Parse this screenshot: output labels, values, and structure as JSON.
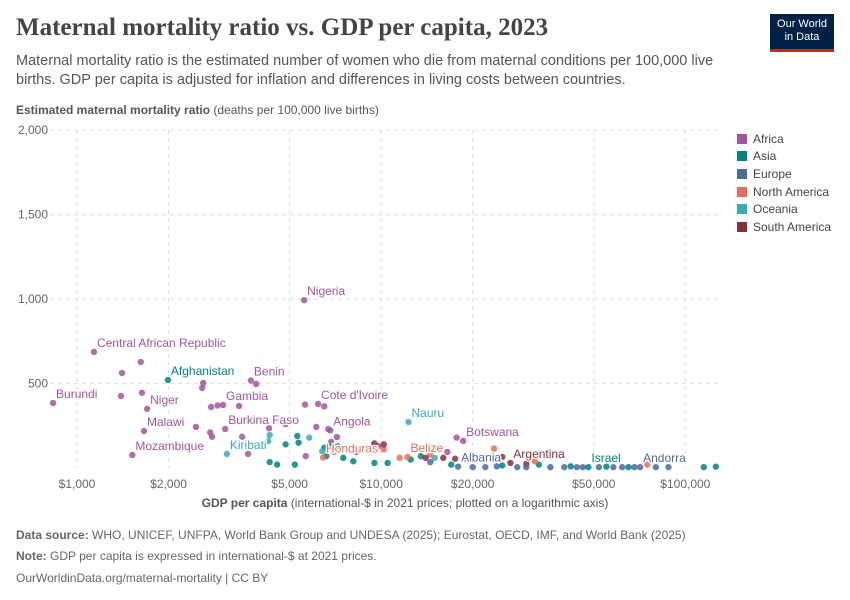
{
  "header": {
    "title": "Maternal mortality ratio vs. GDP per capita, 2023",
    "subtitle": "Maternal mortality ratio is the estimated number of women who die from maternal conditions per 100,000 live births. GDP per capita is adjusted for inflation and differences in living costs between countries.",
    "logo": "Our World in Data"
  },
  "footer": {
    "source_label": "Data source:",
    "source": "WHO, UNICEF, UNFPA, World Bank Group and UNDESA (2025); Eurostat, OECD, IMF, and World Bank (2025)",
    "note_label": "Note:",
    "note": "GDP per capita is expressed in international-$ at 2021 prices.",
    "link": "OurWorldinData.org/maternal-mortality | CC BY"
  },
  "chart_data": {
    "type": "scatter",
    "title": "Maternal mortality ratio vs. GDP per capita, 2023",
    "ylabel_bold": "Estimated maternal mortality ratio",
    "ylabel_rest": "(deaths per 100,000 live births)",
    "xlabel_bold": "GDP per capita",
    "xlabel_rest": "(international-$ in 2021 prices; plotted on a logarithmic axis)",
    "x_scale": "log",
    "xlim": [
      815,
      130000
    ],
    "ylim": [
      0,
      2000
    ],
    "grid": true,
    "legend_placement": "right",
    "xticks": [
      {
        "v": 1000,
        "label": "$1,000"
      },
      {
        "v": 2000,
        "label": "$2,000"
      },
      {
        "v": 5000,
        "label": "$5,000"
      },
      {
        "v": 10000,
        "label": "$10,000"
      },
      {
        "v": 20000,
        "label": "$20,000"
      },
      {
        "v": 50000,
        "label": "$50,000"
      },
      {
        "v": 100000,
        "label": "$100,000"
      }
    ],
    "yticks": [
      {
        "v": 500,
        "label": "500"
      },
      {
        "v": 1000,
        "label": "1,000"
      },
      {
        "v": 1500,
        "label": "1,500"
      },
      {
        "v": 2000,
        "label": "2,000"
      }
    ],
    "regions": [
      {
        "name": "Africa",
        "color": "#a2559c"
      },
      {
        "name": "Asia",
        "color": "#00847e"
      },
      {
        "name": "Europe",
        "color": "#4c6a9c"
      },
      {
        "name": "North America",
        "color": "#e56e5a"
      },
      {
        "name": "Oceania",
        "color": "#38aaba"
      },
      {
        "name": "South America",
        "color": "#883039"
      }
    ],
    "points": [
      {
        "name": "Burundi",
        "gdp": 834,
        "mmr": 385,
        "region": "Africa",
        "label": true
      },
      {
        "name": "Central African Republic",
        "gdp": 1137,
        "mmr": 687,
        "region": "Africa",
        "label": true
      },
      {
        "name": "Nigeria",
        "gdp": 5580,
        "mmr": 993,
        "region": "Africa",
        "label": true
      },
      {
        "name": "Afghanistan",
        "gdp": 1990,
        "mmr": 521,
        "region": "Asia",
        "label": true
      },
      {
        "name": "Benin",
        "gdp": 3730,
        "mmr": 518,
        "region": "Africa",
        "label": true
      },
      {
        "name": "Niger",
        "gdp": 1700,
        "mmr": 350,
        "region": "Africa",
        "label": true
      },
      {
        "name": "Gambia",
        "gdp": 3020,
        "mmr": 373,
        "region": "Africa",
        "label": true
      },
      {
        "name": "Malawi",
        "gdp": 1660,
        "mmr": 219,
        "region": "Africa",
        "label": true
      },
      {
        "name": "Burkina Faso",
        "gdp": 3070,
        "mmr": 231,
        "region": "Africa",
        "label": true
      },
      {
        "name": "Mozambique",
        "gdp": 1520,
        "mmr": 77,
        "region": "Africa",
        "label": true
      },
      {
        "name": "Kiribati",
        "gdp": 3110,
        "mmr": 83,
        "region": "Oceania",
        "label": true
      },
      {
        "name": "Cote d'Ivoire",
        "gdp": 6200,
        "mmr": 379,
        "region": "Africa",
        "label": true
      },
      {
        "name": "Angola",
        "gdp": 6800,
        "mmr": 222,
        "region": "Africa",
        "label": true
      },
      {
        "name": "Nauru",
        "gdp": 12300,
        "mmr": 272,
        "region": "Oceania",
        "label": true
      },
      {
        "name": "Honduras",
        "gdp": 6440,
        "mmr": 62,
        "region": "North America",
        "label": true
      },
      {
        "name": "Belize",
        "gdp": 12200,
        "mmr": 65,
        "region": "North America",
        "label": true
      },
      {
        "name": "Botswana",
        "gdp": 18600,
        "mmr": 160,
        "region": "Africa",
        "label": true
      },
      {
        "name": "Albania",
        "gdp": 17900,
        "mmr": 8,
        "region": "Europe",
        "label": true
      },
      {
        "name": "Argentina",
        "gdp": 26600,
        "mmr": 30,
        "region": "South America",
        "label": true
      },
      {
        "name": "Israel",
        "gdp": 48000,
        "mmr": 5,
        "region": "Asia",
        "label": true
      },
      {
        "name": "Andorra",
        "gdp": 71000,
        "mmr": 5,
        "region": "Europe",
        "label": true
      },
      {
        "gdp": 1406,
        "mmr": 562,
        "region": "Africa"
      },
      {
        "gdp": 1620,
        "mmr": 627,
        "region": "Africa"
      },
      {
        "gdp": 1395,
        "mmr": 426,
        "region": "Africa"
      },
      {
        "gdp": 1635,
        "mmr": 445,
        "region": "Africa"
      },
      {
        "gdp": 2600,
        "mmr": 503,
        "region": "Africa"
      },
      {
        "gdp": 2580,
        "mmr": 474,
        "region": "Africa"
      },
      {
        "gdp": 3880,
        "mmr": 497,
        "region": "Africa"
      },
      {
        "gdp": 2760,
        "mmr": 361,
        "region": "Africa"
      },
      {
        "gdp": 2900,
        "mmr": 370,
        "region": "Africa"
      },
      {
        "gdp": 3410,
        "mmr": 367,
        "region": "Africa"
      },
      {
        "gdp": 2460,
        "mmr": 243,
        "region": "Africa"
      },
      {
        "gdp": 2740,
        "mmr": 210,
        "region": "Africa"
      },
      {
        "gdp": 2780,
        "mmr": 185,
        "region": "Africa"
      },
      {
        "gdp": 3490,
        "mmr": 185,
        "region": "Africa"
      },
      {
        "gdp": 3650,
        "mmr": 83,
        "region": "Africa"
      },
      {
        "gdp": 4280,
        "mmr": 235,
        "region": "Africa"
      },
      {
        "gdp": 4850,
        "mmr": 260,
        "region": "Africa"
      },
      {
        "gdp": 5620,
        "mmr": 375,
        "region": "Africa"
      },
      {
        "gdp": 6500,
        "mmr": 365,
        "region": "Africa"
      },
      {
        "gdp": 6120,
        "mmr": 243,
        "region": "Africa"
      },
      {
        "gdp": 6700,
        "mmr": 230,
        "region": "Africa"
      },
      {
        "gdp": 7150,
        "mmr": 183,
        "region": "Africa"
      },
      {
        "gdp": 5650,
        "mmr": 70,
        "region": "Africa"
      },
      {
        "gdp": 8300,
        "mmr": 95,
        "region": "Africa"
      },
      {
        "gdp": 16500,
        "mmr": 95,
        "region": "Africa"
      },
      {
        "gdp": 17700,
        "mmr": 180,
        "region": "Africa"
      },
      {
        "gdp": 6850,
        "mmr": 155,
        "region": "Africa"
      },
      {
        "gdp": 9800,
        "mmr": 130,
        "region": "Africa"
      },
      {
        "gdp": 4300,
        "mmr": 35,
        "region": "Asia"
      },
      {
        "gdp": 4550,
        "mmr": 20,
        "region": "Asia"
      },
      {
        "gdp": 4850,
        "mmr": 140,
        "region": "Asia"
      },
      {
        "gdp": 5300,
        "mmr": 190,
        "region": "Asia"
      },
      {
        "gdp": 5350,
        "mmr": 150,
        "region": "Asia"
      },
      {
        "gdp": 5200,
        "mmr": 20,
        "region": "Asia"
      },
      {
        "gdp": 6500,
        "mmr": 120,
        "region": "Asia"
      },
      {
        "gdp": 6900,
        "mmr": 135,
        "region": "Asia"
      },
      {
        "gdp": 6600,
        "mmr": 70,
        "region": "Asia"
      },
      {
        "gdp": 7500,
        "mmr": 60,
        "region": "Asia"
      },
      {
        "gdp": 8100,
        "mmr": 40,
        "region": "Asia"
      },
      {
        "gdp": 9500,
        "mmr": 30,
        "region": "Asia"
      },
      {
        "gdp": 10500,
        "mmr": 30,
        "region": "Asia"
      },
      {
        "gdp": 12500,
        "mmr": 50,
        "region": "Asia"
      },
      {
        "gdp": 13500,
        "mmr": 70,
        "region": "Asia"
      },
      {
        "gdp": 15000,
        "mmr": 120,
        "region": "Asia"
      },
      {
        "gdp": 17000,
        "mmr": 20,
        "region": "Asia"
      },
      {
        "gdp": 25000,
        "mmr": 15,
        "region": "Asia"
      },
      {
        "gdp": 33000,
        "mmr": 20,
        "region": "Asia"
      },
      {
        "gdp": 42000,
        "mmr": 10,
        "region": "Asia"
      },
      {
        "gdp": 55000,
        "mmr": 8,
        "region": "Asia"
      },
      {
        "gdp": 65000,
        "mmr": 5,
        "region": "Asia"
      },
      {
        "gdp": 115000,
        "mmr": 5,
        "region": "Asia"
      },
      {
        "gdp": 126000,
        "mmr": 8,
        "region": "Asia"
      },
      {
        "gdp": 4300,
        "mmr": 195,
        "region": "Oceania"
      },
      {
        "gdp": 5800,
        "mmr": 180,
        "region": "Oceania"
      },
      {
        "gdp": 6400,
        "mmr": 100,
        "region": "Oceania"
      },
      {
        "gdp": 7200,
        "mmr": 130,
        "region": "Oceania"
      },
      {
        "gdp": 4250,
        "mmr": 160,
        "region": "Oceania"
      },
      {
        "gdp": 15000,
        "mmr": 60,
        "region": "Oceania"
      },
      {
        "gdp": 7000,
        "mmr": 95,
        "region": "North America"
      },
      {
        "gdp": 10200,
        "mmr": 110,
        "region": "North America"
      },
      {
        "gdp": 11500,
        "mmr": 60,
        "region": "North America"
      },
      {
        "gdp": 14500,
        "mmr": 80,
        "region": "North America"
      },
      {
        "gdp": 19000,
        "mmr": 55,
        "region": "North America"
      },
      {
        "gdp": 23500,
        "mmr": 115,
        "region": "North America"
      },
      {
        "gdp": 32000,
        "mmr": 40,
        "region": "North America"
      },
      {
        "gdp": 75000,
        "mmr": 20,
        "region": "North America"
      },
      {
        "gdp": 9500,
        "mmr": 145,
        "region": "South America"
      },
      {
        "gdp": 10200,
        "mmr": 140,
        "region": "South America"
      },
      {
        "gdp": 14000,
        "mmr": 60,
        "region": "South America"
      },
      {
        "gdp": 16000,
        "mmr": 60,
        "region": "South America"
      },
      {
        "gdp": 17500,
        "mmr": 55,
        "region": "South America"
      },
      {
        "gdp": 25000,
        "mmr": 65,
        "region": "South America"
      },
      {
        "gdp": 30000,
        "mmr": 25,
        "region": "South America"
      },
      {
        "gdp": 20000,
        "mmr": 5,
        "region": "Europe"
      },
      {
        "gdp": 22000,
        "mmr": 5,
        "region": "Europe"
      },
      {
        "gdp": 28000,
        "mmr": 5,
        "region": "Europe"
      },
      {
        "gdp": 30000,
        "mmr": 5,
        "region": "Europe"
      },
      {
        "gdp": 36000,
        "mmr": 5,
        "region": "Europe"
      },
      {
        "gdp": 40000,
        "mmr": 5,
        "region": "Europe"
      },
      {
        "gdp": 44000,
        "mmr": 5,
        "region": "Europe"
      },
      {
        "gdp": 46000,
        "mmr": 5,
        "region": "Europe"
      },
      {
        "gdp": 52000,
        "mmr": 5,
        "region": "Europe"
      },
      {
        "gdp": 58000,
        "mmr": 5,
        "region": "Europe"
      },
      {
        "gdp": 62000,
        "mmr": 5,
        "region": "Europe"
      },
      {
        "gdp": 68000,
        "mmr": 5,
        "region": "Europe"
      },
      {
        "gdp": 80000,
        "mmr": 5,
        "region": "Europe"
      },
      {
        "gdp": 88000,
        "mmr": 5,
        "region": "Europe"
      },
      {
        "gdp": 14500,
        "mmr": 35,
        "region": "Europe"
      },
      {
        "gdp": 24000,
        "mmr": 10,
        "region": "Europe"
      }
    ]
  }
}
